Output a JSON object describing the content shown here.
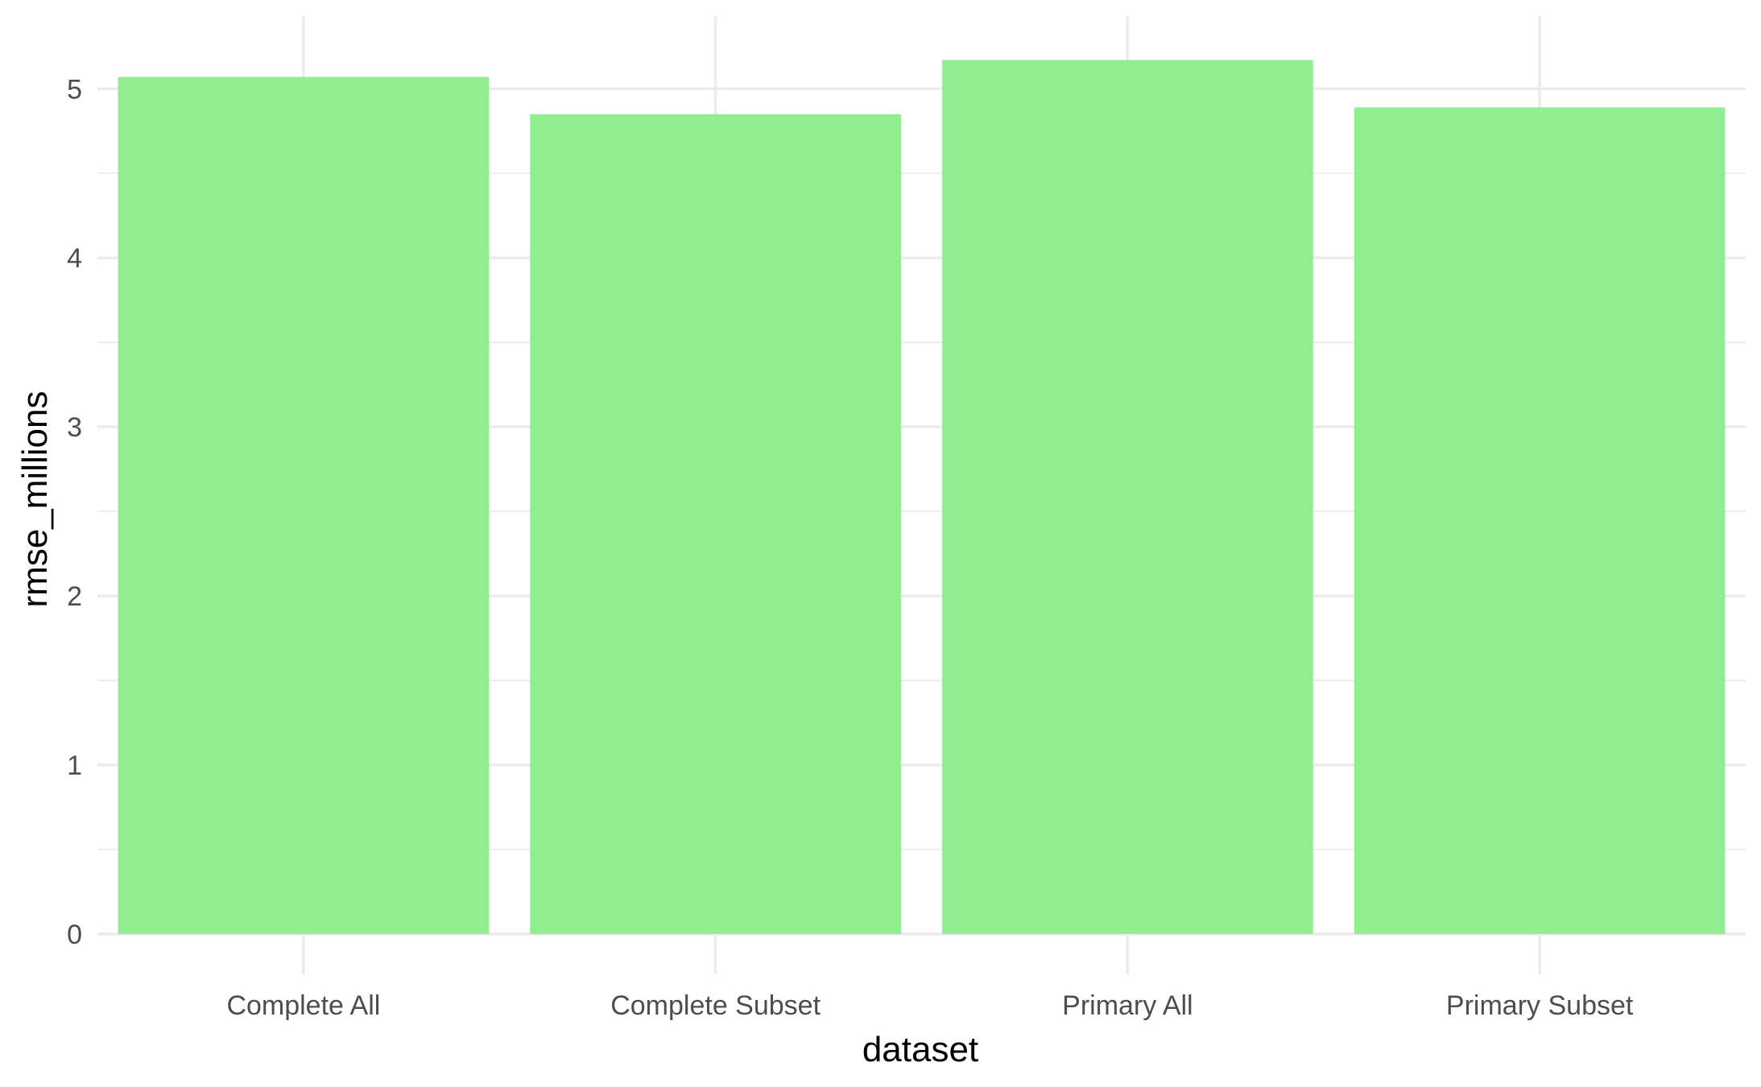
{
  "chart_data": {
    "type": "bar",
    "title": "",
    "xlabel": "dataset",
    "ylabel": "rmse_millions",
    "categories": [
      "Complete All",
      "Complete Subset",
      "Primary All",
      "Primary Subset"
    ],
    "values": [
      5.07,
      4.85,
      5.17,
      4.89
    ],
    "ylim": [
      0,
      5.43
    ],
    "yticks": [
      0,
      1,
      2,
      3,
      4,
      5
    ],
    "ytick_labels": [
      "0",
      "1",
      "2",
      "3",
      "4",
      "5"
    ],
    "grid": true,
    "legend": "none",
    "colors": {
      "bar": "#90ee90",
      "grid": "#ebebeb",
      "tick_text": "#4d4d4d",
      "title_text": "#000000",
      "background": "#ffffff"
    }
  }
}
